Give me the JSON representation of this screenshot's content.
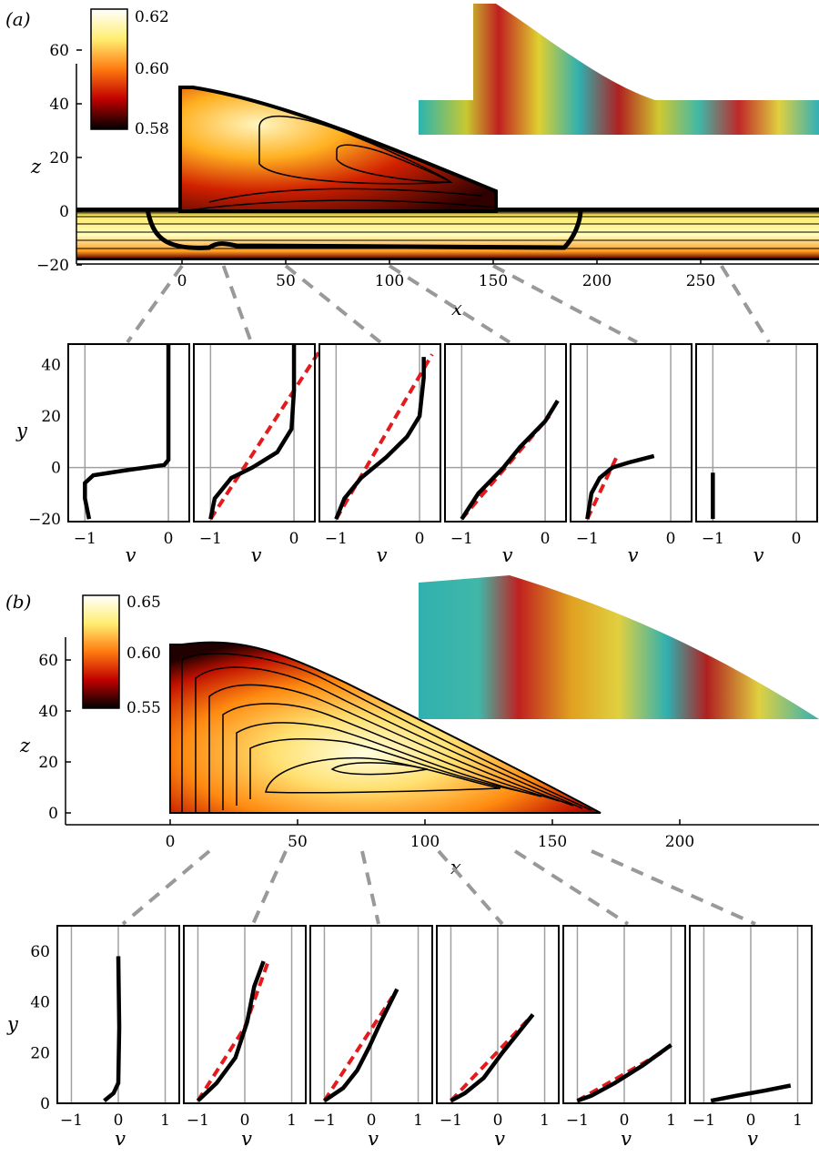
{
  "panel_a": {
    "label": "(a)",
    "colorbar": {
      "max": "0.62",
      "mid": "0.60",
      "min": "0.58"
    },
    "axis": {
      "xlabel": "x",
      "ylabel": "z",
      "xticks": [
        0,
        50,
        100,
        150,
        200,
        250
      ],
      "zticks": [
        60,
        40,
        20,
        0,
        -20
      ]
    },
    "profile_x": [
      0,
      20,
      50,
      100,
      150,
      260
    ],
    "profiles_ylabel": "y",
    "profiles_xlabel": "v",
    "profile_yticks": [
      40,
      20,
      0,
      -20
    ],
    "profile_vticks": [
      -1,
      0
    ],
    "profile_tick_labels": [
      "−1",
      "0"
    ]
  },
  "panel_b": {
    "label": "(b)",
    "colorbar": {
      "max": "0.65",
      "mid": "0.60",
      "min": "0.55"
    },
    "axis": {
      "xlabel": "x",
      "ylabel": "z",
      "xticks": [
        0,
        50,
        100,
        150,
        200
      ],
      "zticks": [
        60,
        40,
        20,
        0
      ]
    },
    "profile_x": [
      10,
      40,
      70,
      100,
      130,
      160
    ],
    "profiles_ylabel": "y",
    "profiles_xlabel": "v",
    "profile_yticks": [
      60,
      40,
      20,
      0
    ],
    "profile_vticks": [
      -1,
      0,
      1
    ],
    "profile_tick_labels": [
      "−1",
      "0",
      "1"
    ]
  },
  "colors": {
    "fit_line": "#e41a1c",
    "profile_line": "#000000",
    "grid": "#a0a0a0",
    "connector": "#999999"
  }
}
